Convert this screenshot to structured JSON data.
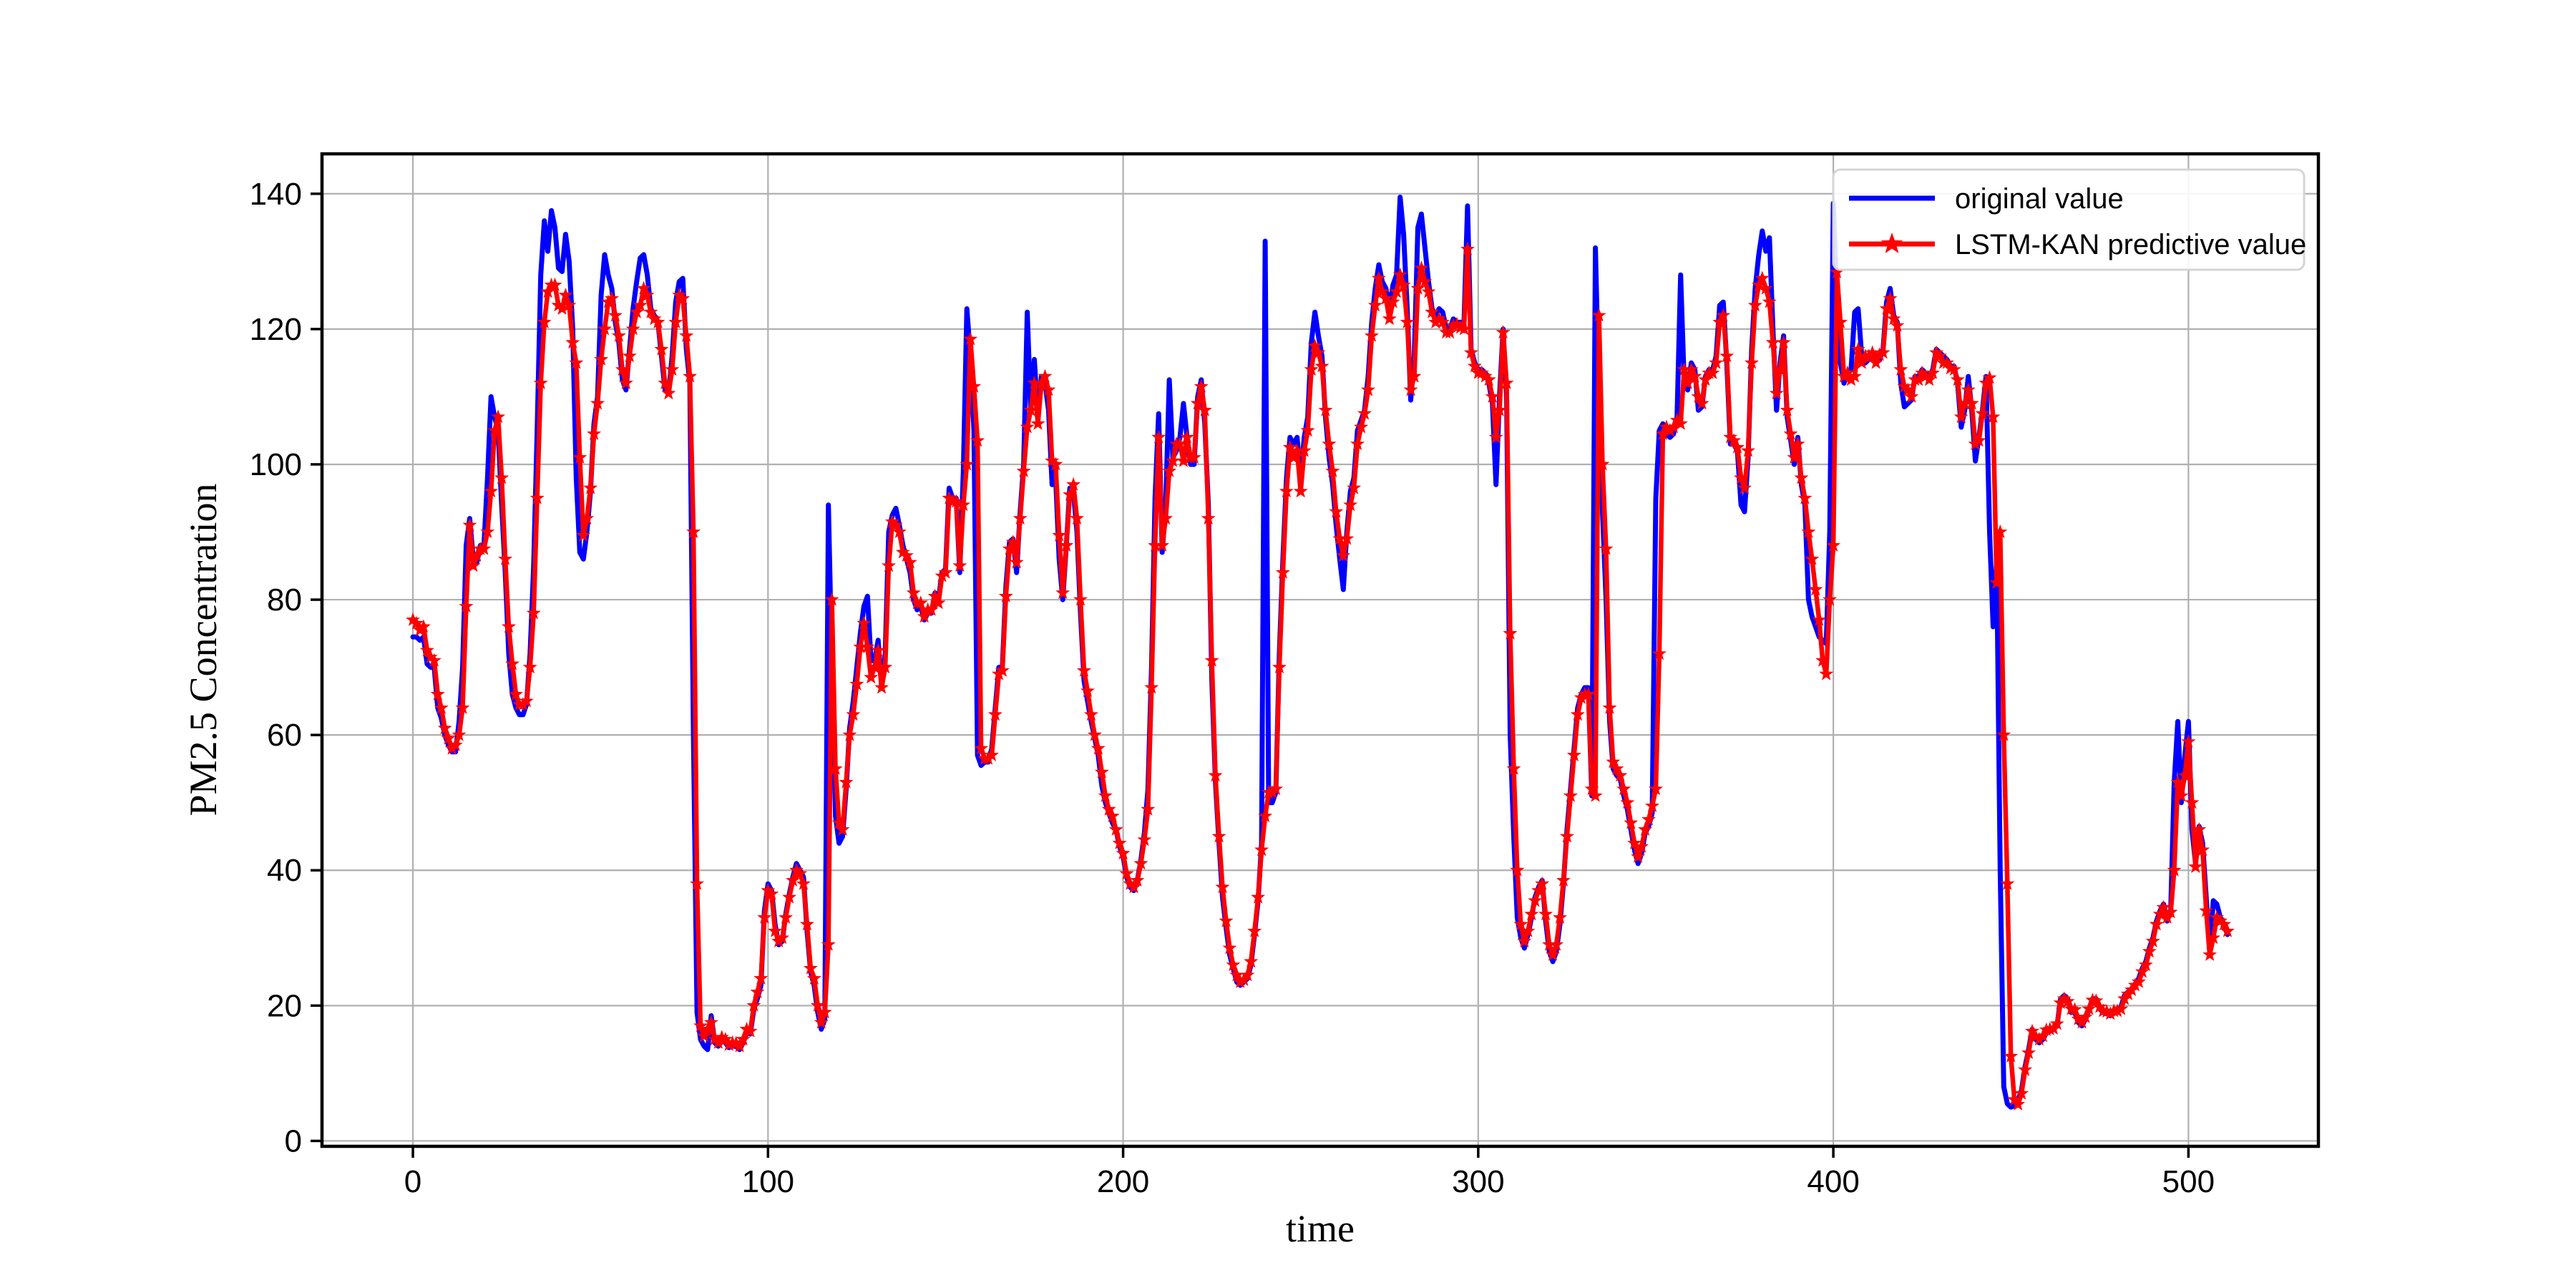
{
  "chart_data": {
    "type": "line",
    "title": "",
    "xlabel": "time",
    "ylabel": "PM2.5 Concentration",
    "xlim": [
      -25.6,
      536.6
    ],
    "ylim": [
      -0.8,
      145.9
    ],
    "xticks": [
      0,
      100,
      200,
      300,
      400,
      500
    ],
    "yticks": [
      0,
      20,
      40,
      60,
      80,
      100,
      120,
      140
    ],
    "grid": true,
    "colors": {
      "original": "#0000ff",
      "predictive": "#ff0000",
      "gridline": "#b0b0b0",
      "spine": "#000000",
      "legend_border": "#d5d5d5"
    },
    "legend": {
      "position": "upper right"
    },
    "series": [
      {
        "name": "original value",
        "color": "#0000ff",
        "marker": "none",
        "x_start": 0,
        "x_step": 1,
        "values": [
          74.5,
          74.5,
          74,
          74.5,
          70.5,
          70,
          70,
          64,
          62.5,
          60,
          58.5,
          57.5,
          57.5,
          62,
          70,
          88,
          92,
          86,
          85.5,
          88,
          88,
          98,
          110,
          107,
          105,
          94,
          84,
          72,
          66,
          64,
          63,
          63,
          64.5,
          72,
          85,
          105,
          128,
          136,
          131.5,
          137.5,
          135,
          129,
          128.5,
          134,
          130,
          120,
          98,
          87,
          86,
          90,
          96,
          106,
          110,
          125,
          131,
          128,
          126,
          121,
          118,
          112.5,
          111,
          117,
          123,
          127,
          130.5,
          131,
          128,
          123,
          122,
          121,
          116,
          111,
          110.5,
          116,
          124,
          127,
          127.5,
          117,
          112,
          60,
          19,
          15,
          14,
          13.5,
          18.5,
          14.5,
          14,
          14.8,
          14.5,
          13.8,
          14,
          14,
          13.5,
          14.5,
          16,
          15.8,
          19.5,
          21,
          23,
          34,
          38,
          37,
          32,
          29,
          29.5,
          33.5,
          36.5,
          39,
          41,
          40,
          39,
          31,
          25,
          23,
          19,
          16.5,
          18,
          94,
          70,
          48,
          44,
          45,
          52,
          61,
          65,
          70,
          75,
          79,
          80.5,
          71,
          71,
          74,
          67,
          72,
          90,
          92.5,
          93.5,
          91,
          88,
          86,
          84,
          80,
          78.5,
          79,
          77,
          78,
          78,
          81,
          80,
          84,
          84.5,
          96.5,
          95,
          95,
          84,
          99,
          123,
          116,
          105,
          57,
          55.5,
          56,
          56,
          58,
          64,
          70,
          70,
          82,
          88.5,
          89,
          84,
          93,
          100,
          122.5,
          108,
          115.5,
          107,
          113,
          112,
          108,
          97,
          98,
          86,
          80,
          88,
          96.5,
          96,
          90,
          78,
          68,
          65,
          62,
          59.5,
          57,
          52.5,
          50,
          48.5,
          47,
          46,
          43.5,
          42,
          39,
          37.5,
          37,
          38.5,
          41.5,
          45.5,
          52,
          70,
          95,
          107.5,
          87,
          94,
          112.5,
          101,
          102,
          104,
          109,
          104,
          100,
          100,
          110,
          112.5,
          106,
          94,
          68,
          53,
          44,
          36,
          31.5,
          27.5,
          25.5,
          23.5,
          23,
          23.5,
          24,
          26,
          30.5,
          35.5,
          44,
          133,
          50,
          50,
          51.5,
          72,
          86,
          98,
          104,
          103,
          104,
          98,
          104,
          107,
          118,
          122.5,
          119,
          116,
          107,
          101,
          97,
          91,
          86,
          81.5,
          90,
          96,
          98,
          105,
          106.5,
          108,
          113,
          121,
          126,
          129.5,
          127,
          126,
          123,
          126.5,
          128,
          139.5,
          134,
          123,
          109.5,
          116,
          135,
          137,
          132,
          127,
          123,
          122,
          123,
          122.5,
          120,
          120,
          121.5,
          121,
          121,
          121,
          138.2,
          117,
          115,
          114,
          114,
          113.5,
          112,
          109,
          97,
          110,
          120,
          110,
          60,
          45,
          33,
          30,
          28.5,
          30.5,
          33,
          36,
          37.5,
          38.5,
          32.5,
          28,
          26.5,
          28,
          32,
          38,
          46,
          52,
          58,
          64,
          66,
          67,
          67,
          51,
          132,
          110,
          93,
          80,
          62,
          55,
          54,
          53.5,
          51,
          49,
          46,
          43,
          41,
          42.5,
          45.5,
          46.5,
          48.5,
          95,
          105,
          106,
          104.5,
          104,
          104.5,
          107,
          128,
          112,
          111,
          115,
          114,
          108,
          108.5,
          113,
          114,
          114,
          116,
          123.5,
          124,
          115,
          103,
          103,
          102,
          94,
          93,
          101,
          117,
          126,
          131,
          134.5,
          131.5,
          133.5,
          120,
          108,
          115,
          119,
          107,
          103.5,
          100,
          104,
          97,
          94,
          80,
          77.5,
          76,
          74.5,
          74,
          73.5,
          90,
          138.6,
          125,
          115,
          112,
          113.5,
          114,
          122.5,
          123,
          116,
          115,
          115.5,
          116,
          116,
          115.5,
          117,
          124,
          126,
          122,
          121,
          112,
          108.5,
          109,
          109.5,
          113,
          113,
          114,
          113.5,
          113,
          114,
          117,
          116.5,
          116,
          115.5,
          114.5,
          114.5,
          112,
          105.5,
          108,
          113,
          108,
          100.5,
          104,
          108,
          113,
          90,
          76,
          86,
          40,
          8,
          5.5,
          5,
          5.2,
          6,
          7.5,
          11,
          13.5,
          16.5,
          15,
          14.5,
          15,
          16,
          16.2,
          16.5,
          17,
          21,
          21.5,
          21,
          19,
          19,
          17.5,
          17,
          18,
          19.5,
          21,
          21,
          19.5,
          19,
          18.8,
          18.5,
          19,
          19,
          19.8,
          21.5,
          22,
          22.5,
          23.2,
          24,
          25.5,
          26.5,
          28.5,
          30,
          32.5,
          34,
          35,
          32.5,
          34,
          53,
          62,
          50,
          57,
          62,
          46,
          41,
          46.5,
          44,
          36,
          28,
          35.5,
          35,
          33,
          32,
          30.5
        ]
      },
      {
        "name": "LSTM-KAN predictive value",
        "color": "#ff0000",
        "marker": "star",
        "x_start": 0,
        "x_step": 1,
        "values": [
          77,
          76.5,
          75.5,
          76,
          72.5,
          71.5,
          71,
          66,
          64,
          61,
          59.5,
          58,
          58.5,
          60,
          64,
          79,
          91,
          85,
          86.5,
          87.5,
          87.5,
          90,
          96,
          105,
          107,
          98,
          86,
          76,
          70.5,
          66,
          64.5,
          64.5,
          65,
          70,
          78,
          95,
          112,
          121,
          125.5,
          126.5,
          126.5,
          123.5,
          123,
          125,
          123.5,
          118,
          115,
          101,
          89.5,
          92,
          96.5,
          104.5,
          109,
          115.5,
          120,
          124,
          124.5,
          122,
          119,
          114,
          112,
          116,
          120,
          122.5,
          123.5,
          126,
          125,
          122.5,
          121.5,
          121,
          117,
          112,
          110.5,
          114,
          121,
          125,
          124.5,
          119,
          113,
          90,
          38,
          17,
          15.5,
          16.5,
          17.5,
          15,
          14.5,
          15.3,
          15,
          14.2,
          14.5,
          14.4,
          14,
          15,
          16.5,
          16.2,
          20,
          22,
          24,
          33,
          37,
          36.5,
          31,
          29.5,
          30,
          33,
          36,
          38.5,
          40,
          39.5,
          38,
          32,
          25.5,
          24,
          20,
          17.5,
          19,
          29,
          80,
          55,
          47,
          46,
          53,
          60,
          63,
          67.5,
          73,
          76.5,
          73,
          68.5,
          70,
          72.5,
          67,
          70,
          85,
          91.5,
          91,
          90,
          87,
          86.5,
          85.5,
          81,
          79.5,
          79.5,
          77.5,
          78.5,
          78.5,
          80.5,
          79.5,
          83.5,
          84,
          95,
          94.5,
          94.5,
          85,
          94,
          100,
          118.5,
          111.5,
          103.5,
          58,
          56.5,
          56.5,
          57,
          63,
          69,
          69.5,
          80.5,
          87.5,
          88.5,
          85.5,
          92,
          99,
          105.5,
          108,
          112,
          106,
          112,
          113,
          111,
          100.5,
          100,
          89.5,
          81,
          88,
          95.5,
          97,
          92,
          80,
          69.5,
          66.5,
          63,
          60,
          58,
          54.5,
          51,
          49,
          48,
          46,
          44,
          42.5,
          39.5,
          38,
          37.5,
          38.5,
          41,
          44.5,
          49,
          67,
          88,
          104,
          88,
          92,
          99,
          100.5,
          103,
          103,
          100.5,
          104,
          101,
          101,
          109,
          111.5,
          108,
          92,
          71,
          54,
          45,
          37.5,
          32.5,
          28.5,
          26,
          24.5,
          23.5,
          23.8,
          24.5,
          26.5,
          31,
          36,
          43,
          48,
          51.5,
          51.5,
          52,
          70,
          84,
          96,
          102.5,
          101,
          102,
          96,
          102,
          105,
          114,
          117.5,
          116.5,
          114.5,
          108,
          103,
          99,
          93,
          89,
          86.5,
          89,
          94,
          96.5,
          103,
          105.5,
          107.5,
          111,
          119,
          123.5,
          127.5,
          125.5,
          124.5,
          121.5,
          124,
          125.5,
          128,
          126.5,
          121,
          111,
          113,
          126,
          129,
          127,
          125.5,
          122.5,
          121,
          121.5,
          121,
          119.5,
          119.5,
          120.5,
          120.7,
          120.2,
          120,
          131.8,
          116.5,
          114.5,
          113.5,
          113.5,
          113,
          112.5,
          110,
          104,
          108,
          119.5,
          112,
          75,
          55,
          40,
          32,
          29.5,
          31,
          33.5,
          35.5,
          37,
          38,
          33.5,
          29,
          27.5,
          29,
          33,
          38.5,
          45,
          51,
          57,
          63,
          65.5,
          66,
          66,
          52,
          51,
          122,
          100,
          87.5,
          64,
          56,
          55,
          54,
          52,
          50,
          47,
          44,
          42,
          43.5,
          46,
          47.5,
          49.5,
          52,
          72,
          104.5,
          105.5,
          105,
          105.5,
          106.5,
          106,
          114,
          112,
          114,
          113,
          110,
          109,
          112.5,
          113.5,
          113.5,
          115,
          121,
          122,
          116,
          104,
          103.5,
          102.5,
          98,
          96.5,
          102,
          115,
          123.5,
          126.5,
          127.5,
          126,
          124,
          118,
          110.5,
          114,
          118,
          108,
          104.5,
          101,
          103,
          98,
          95,
          90,
          86,
          81.5,
          77,
          71,
          69,
          80,
          88,
          128.4,
          121,
          113,
          113.5,
          112.5,
          113,
          117,
          115,
          116,
          116,
          116.5,
          115,
          116.2,
          116.5,
          123,
          124.5,
          121.5,
          120.5,
          114,
          111.5,
          111,
          110,
          112.5,
          112.5,
          113.5,
          113,
          112.5,
          113.5,
          116.5,
          116,
          115,
          115,
          114.2,
          114,
          112.5,
          107,
          109,
          111,
          109,
          103,
          103.5,
          107.5,
          112,
          112.8,
          107,
          82.5,
          90,
          60,
          38,
          12.5,
          6.1,
          5.4,
          7,
          10.5,
          13,
          16.2,
          15.4,
          15,
          15.5,
          16.4,
          16.5,
          16.6,
          17.3,
          20.4,
          21,
          20.6,
          19.5,
          19.4,
          18,
          17.5,
          18.3,
          19.5,
          20.8,
          20.7,
          19.8,
          19.2,
          19.1,
          18.8,
          19.2,
          19.2,
          19.5,
          21,
          21.7,
          22.3,
          23,
          23.5,
          25,
          26,
          28,
          29.5,
          32,
          33.5,
          34.5,
          33,
          33.8,
          40,
          53,
          51,
          54,
          59,
          50,
          40.5,
          46,
          43,
          34,
          27.5,
          30,
          33,
          32.5,
          32,
          31
        ]
      }
    ]
  }
}
